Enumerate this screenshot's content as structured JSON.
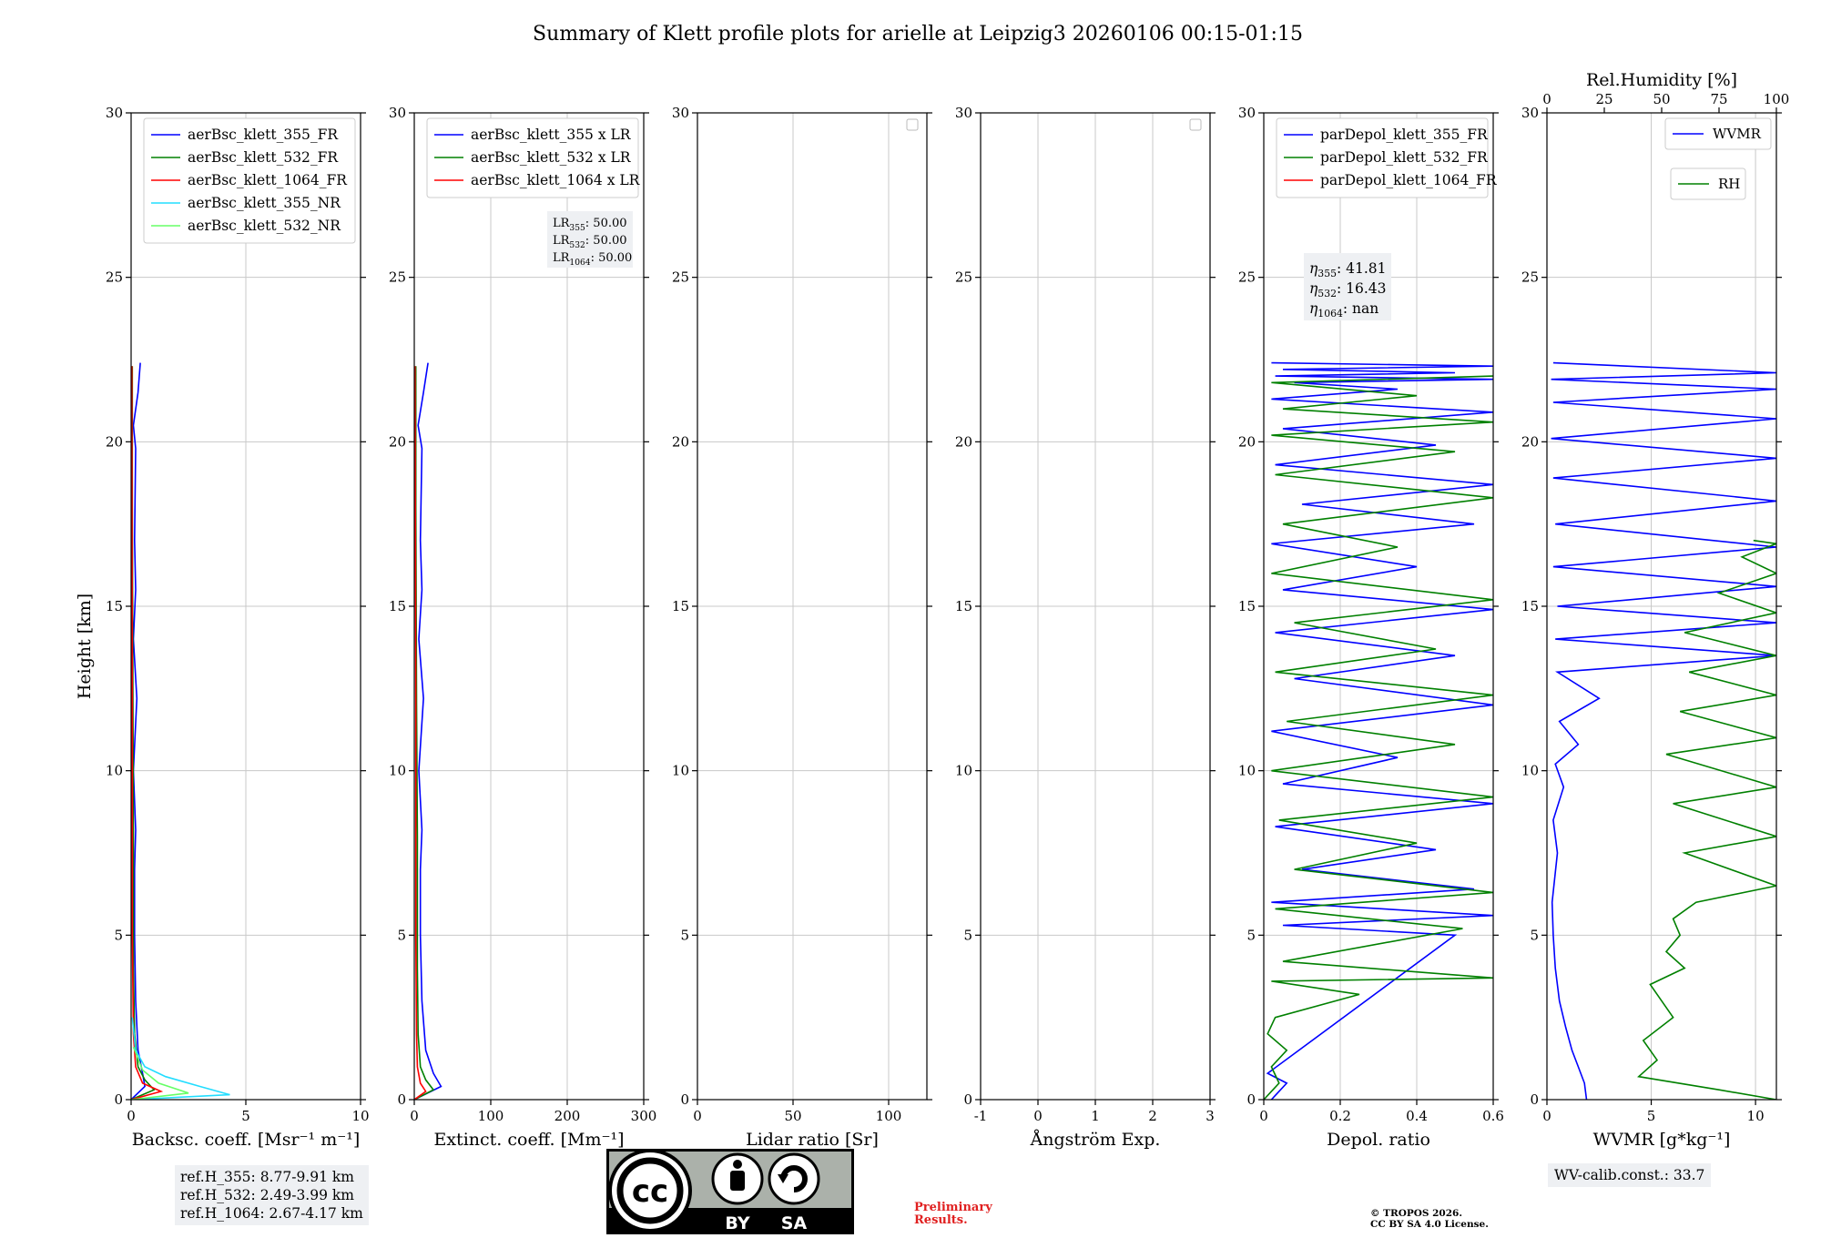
{
  "title": "Summary of Klett profile plots for arielle at Leipzig3 20260106 00:15-01:15",
  "height_axis_label": "Height [km]",
  "ref_heights": [
    "ref.H_355: 8.77-9.91 km",
    "ref.H_532: 2.49-3.99 km",
    "ref.H_1064: 2.67-4.17 km"
  ],
  "wv_calib": "WV-calib.const.: 33.7",
  "preliminary": [
    "Preliminary",
    "Results."
  ],
  "copyright": [
    "© TROPOS 2026.",
    "CC BY SA 4.0 License."
  ],
  "license_badge": {
    "cc": "cc",
    "by": "BY",
    "sa": "SA"
  },
  "chart_data": [
    {
      "type": "line",
      "panel": "backscatter",
      "xlabel": "Backsc. coeff. [Msr⁻¹ m⁻¹]",
      "ylabel": "Height [km]",
      "xlim": [
        0,
        10
      ],
      "ylim": [
        0,
        30
      ],
      "xticks": [
        0,
        5,
        10
      ],
      "yticks": [
        0,
        5,
        10,
        15,
        20,
        25,
        30
      ],
      "grid": true,
      "legend": "top-right",
      "series": [
        {
          "name": "aerBsc_klett_355_FR",
          "color": "#0000ff",
          "x": [
            0.0,
            0.6,
            0.5,
            0.3,
            0.2,
            0.15,
            0.15,
            0.2,
            0.1,
            0.25,
            0.1,
            0.2,
            0.15,
            0.2,
            0.1,
            0.3,
            0.4
          ],
          "y": [
            0.0,
            0.4,
            0.8,
            1.5,
            3,
            5,
            7,
            8.2,
            10,
            12.2,
            14,
            15.5,
            17,
            19.8,
            20.5,
            21.5,
            22.4
          ]
        },
        {
          "name": "aerBsc_klett_532_FR",
          "color": "#008000",
          "x": [
            0.0,
            1.0,
            0.6,
            0.3,
            0.15,
            0.1,
            0.1,
            0.08,
            0.05,
            0.05
          ],
          "y": [
            0.0,
            0.3,
            0.6,
            1.0,
            2,
            4,
            8,
            12,
            18,
            22.3
          ]
        },
        {
          "name": "aerBsc_klett_1064_FR",
          "color": "#ff0000",
          "x": [
            0.0,
            1.3,
            0.5,
            0.2,
            0.1,
            0.05,
            0.05,
            0.03
          ],
          "y": [
            0.0,
            0.25,
            0.5,
            1.0,
            2,
            5,
            12,
            22.3
          ]
        },
        {
          "name": "aerBsc_klett_355_NR",
          "color": "#22ddff",
          "x": [
            0.0,
            4.3,
            3.0,
            1.5,
            0.6,
            0.2,
            0.05
          ],
          "y": [
            0.0,
            0.15,
            0.4,
            0.7,
            1.0,
            1.5,
            2.5
          ]
        },
        {
          "name": "aerBsc_klett_532_NR",
          "color": "#66ff66",
          "x": [
            0.0,
            2.5,
            1.2,
            0.5,
            0.1
          ],
          "y": [
            0.0,
            0.2,
            0.5,
            0.9,
            1.6
          ]
        }
      ]
    },
    {
      "type": "line",
      "panel": "extinction",
      "xlabel": "Extinct. coeff. [Mm⁻¹]",
      "ylabel": "",
      "xlim": [
        0,
        300
      ],
      "ylim": [
        0,
        30
      ],
      "xticks": [
        0,
        100,
        200,
        300
      ],
      "yticks": [
        0,
        5,
        10,
        15,
        20,
        25,
        30
      ],
      "grid": true,
      "legend": "top-right",
      "lr_box": [
        "LR355: 50.00",
        "LR532: 50.00",
        "LR1064: 50.00"
      ],
      "series": [
        {
          "name": "aerBsc_klett_355 x LR",
          "color": "#0000ff",
          "x": [
            0,
            35,
            25,
            15,
            10,
            8,
            8,
            10,
            6,
            12,
            6,
            10,
            8,
            10,
            5,
            12,
            18
          ],
          "y": [
            0.0,
            0.4,
            0.8,
            1.5,
            3,
            5,
            7,
            8.2,
            10,
            12.2,
            14,
            15.5,
            17,
            19.8,
            20.5,
            21.5,
            22.4
          ]
        },
        {
          "name": "aerBsc_klett_532 x LR",
          "color": "#008000",
          "x": [
            0,
            25,
            15,
            8,
            5,
            4,
            4,
            3,
            2,
            2
          ],
          "y": [
            0.0,
            0.3,
            0.6,
            1.0,
            2,
            4,
            8,
            12,
            18,
            22.3
          ]
        },
        {
          "name": "aerBsc_klett_1064 x LR",
          "color": "#ff0000",
          "x": [
            0,
            15,
            8,
            4,
            3,
            2,
            2,
            1
          ],
          "y": [
            0.0,
            0.25,
            0.5,
            1.0,
            2,
            5,
            12,
            22.3
          ]
        }
      ]
    },
    {
      "type": "line",
      "panel": "lidar_ratio",
      "xlabel": "Lidar ratio [Sr]",
      "ylabel": "",
      "xlim": [
        0,
        120
      ],
      "ylim": [
        0,
        30
      ],
      "xticks": [
        0,
        50,
        100
      ],
      "yticks": [
        0,
        5,
        10,
        15,
        20,
        25,
        30
      ],
      "grid": true,
      "series": []
    },
    {
      "type": "line",
      "panel": "angstrom",
      "xlabel": "Ångström Exp.",
      "ylabel": "",
      "xlim": [
        -1,
        3
      ],
      "ylim": [
        0,
        30
      ],
      "xticks": [
        -1,
        0,
        1,
        2,
        3
      ],
      "yticks": [
        0,
        5,
        10,
        15,
        20,
        25,
        30
      ],
      "grid": true,
      "series": []
    },
    {
      "type": "line",
      "panel": "depolarization",
      "xlabel": "Depol. ratio",
      "ylabel": "",
      "xlim": [
        0,
        0.6
      ],
      "ylim": [
        0,
        30
      ],
      "xticks": [
        0.0,
        0.2,
        0.4,
        0.6
      ],
      "yticks": [
        0,
        5,
        10,
        15,
        20,
        25,
        30
      ],
      "grid": true,
      "legend": "top-right",
      "eta_box": [
        "η355: 41.81",
        "η532: 16.43",
        "η1064: nan"
      ],
      "series": [
        {
          "name": "parDepol_klett_355_FR",
          "color": "#0000ff",
          "x": [
            0.02,
            0.06,
            0.01,
            0.5,
            0.05,
            0.6,
            0.02,
            0.55,
            0.1,
            0.45,
            0.03,
            0.6,
            0.05,
            0.35,
            0.02,
            0.6,
            0.08,
            0.5,
            0.03,
            0.6,
            0.05,
            0.4,
            0.02,
            0.55,
            0.1,
            0.6,
            0.03,
            0.45,
            0.05,
            0.6,
            0.02,
            0.35,
            0.08,
            0.6,
            0.03,
            0.5,
            0.05,
            0.6,
            0.02
          ],
          "y": [
            0.0,
            0.5,
            0.8,
            5.0,
            5.3,
            5.6,
            6.0,
            6.4,
            7.0,
            7.6,
            8.3,
            9.0,
            9.6,
            10.4,
            11.2,
            12.0,
            12.8,
            13.5,
            14.2,
            14.9,
            15.5,
            16.2,
            16.9,
            17.5,
            18.1,
            18.7,
            19.3,
            19.9,
            20.4,
            20.9,
            21.3,
            21.6,
            21.8,
            21.9,
            22.0,
            22.1,
            22.2,
            22.3,
            22.4
          ]
        },
        {
          "name": "parDepol_klett_532_FR",
          "color": "#008000",
          "x": [
            0.0,
            0.04,
            0.02,
            0.06,
            0.01,
            0.03,
            0.25,
            0.02,
            0.6,
            0.05,
            0.52,
            0.03,
            0.6,
            0.08,
            0.4,
            0.04,
            0.6,
            0.02,
            0.5,
            0.06,
            0.6,
            0.03,
            0.45,
            0.08,
            0.6,
            0.02,
            0.35,
            0.05,
            0.6,
            0.03,
            0.5,
            0.02,
            0.6,
            0.05,
            0.4,
            0.02,
            0.6
          ],
          "y": [
            0.0,
            0.5,
            1.0,
            1.5,
            2.0,
            2.5,
            3.2,
            3.6,
            3.7,
            4.2,
            5.2,
            5.8,
            6.3,
            7.0,
            7.8,
            8.5,
            9.2,
            10.0,
            10.8,
            11.5,
            12.3,
            13.0,
            13.7,
            14.5,
            15.2,
            16.0,
            16.8,
            17.5,
            18.3,
            19.0,
            19.7,
            20.2,
            20.6,
            21.0,
            21.4,
            21.8,
            22.0
          ]
        },
        {
          "name": "parDepol_klett_1064_FR",
          "color": "#ff0000",
          "x": [],
          "y": []
        }
      ]
    },
    {
      "type": "line",
      "panel": "wvmr_rh",
      "xlabel": "WVMR [g*kg⁻¹]",
      "ylabel": "",
      "xlim": [
        0,
        11
      ],
      "ylim": [
        0,
        30
      ],
      "xticks": [
        0,
        5,
        10
      ],
      "yticks": [
        0,
        5,
        10,
        15,
        20,
        25,
        30
      ],
      "grid": true,
      "top_axis": {
        "label": "Rel.Humidity [%]",
        "xlim": [
          0,
          100
        ],
        "xticks": [
          0,
          25,
          50,
          75,
          100
        ]
      },
      "legend": "top-right",
      "series": [
        {
          "name": "WVMR",
          "axis": "bottom",
          "color": "#0000ff",
          "x": [
            1.9,
            1.8,
            1.5,
            1.2,
            0.9,
            0.6,
            0.4,
            0.3,
            0.25,
            0.5,
            0.3,
            0.8,
            0.4,
            1.5,
            0.6,
            2.5,
            0.5,
            11,
            0.4,
            11,
            0.5,
            11,
            0.3,
            11,
            0.4,
            11,
            0.3,
            11,
            0.2,
            11,
            0.3,
            11,
            0.2,
            11,
            0.3
          ],
          "y": [
            0.0,
            0.5,
            1.0,
            1.5,
            2.2,
            3.0,
            4.0,
            5.0,
            6.0,
            7.5,
            8.5,
            9.5,
            10.2,
            10.8,
            11.5,
            12.2,
            13.0,
            13.5,
            14.0,
            14.5,
            15.0,
            15.6,
            16.2,
            16.8,
            17.5,
            18.2,
            18.9,
            19.5,
            20.1,
            20.7,
            21.2,
            21.6,
            21.9,
            22.1,
            22.4
          ]
        },
        {
          "name": "RH",
          "axis": "top",
          "color": "#008000",
          "x": [
            100,
            75,
            40,
            48,
            42,
            55,
            50,
            45,
            60,
            52,
            58,
            55,
            65,
            100,
            60,
            100,
            55,
            100,
            52,
            100,
            58,
            100,
            62,
            100,
            60,
            100,
            75,
            100,
            85,
            100,
            90
          ],
          "y": [
            0.0,
            0.3,
            0.7,
            1.2,
            1.8,
            2.5,
            3.0,
            3.5,
            4.0,
            4.5,
            5.0,
            5.5,
            6.0,
            6.5,
            7.5,
            8.0,
            9.0,
            9.5,
            10.5,
            11.0,
            11.8,
            12.3,
            13.0,
            13.5,
            14.2,
            14.8,
            15.4,
            16.0,
            16.5,
            16.9,
            17.0
          ]
        }
      ]
    }
  ]
}
